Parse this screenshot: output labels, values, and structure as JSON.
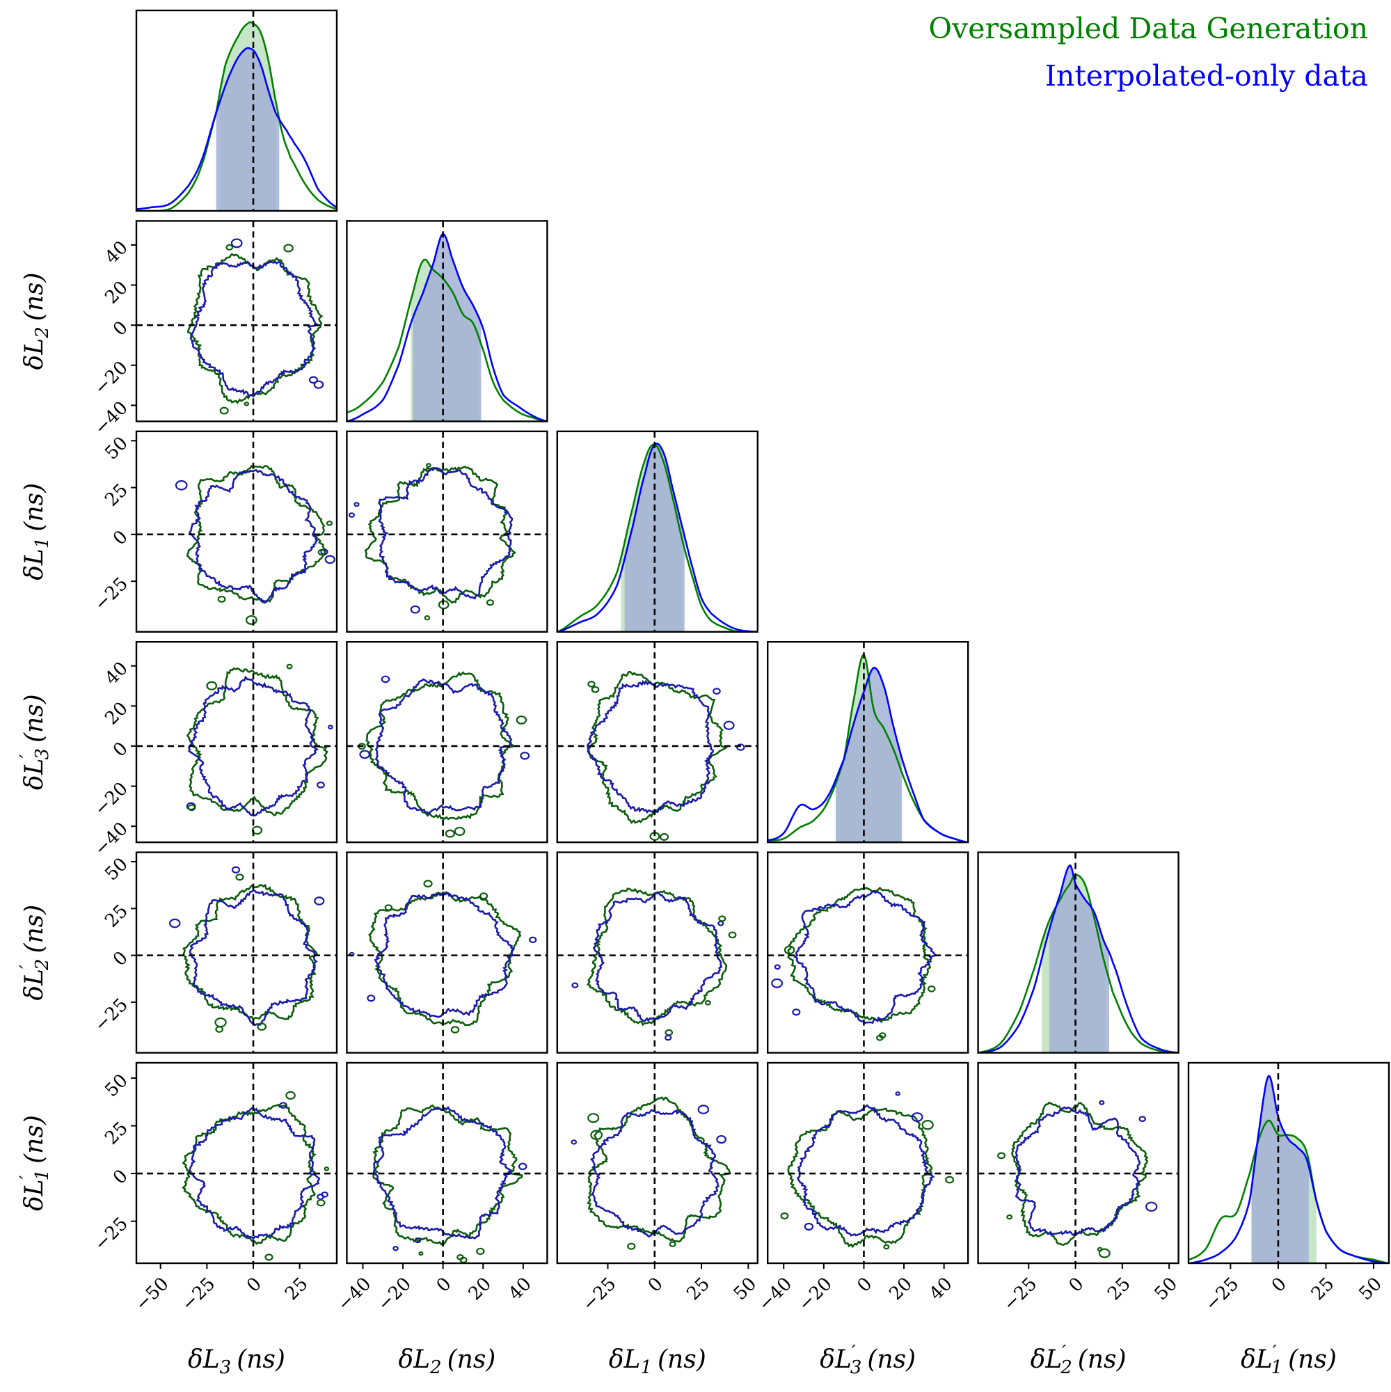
{
  "chart_data": {
    "type": "corner",
    "description_style": "triangular pair plot of 1D marginal densities and 2D contours",
    "legend": {
      "placement": "top-right",
      "entries": [
        {
          "label": "Oversampled Data Generation",
          "color": "#008000"
        },
        {
          "label": "Interpolated-only data",
          "color": "#0000ff"
        }
      ]
    },
    "colors": {
      "green_line": "#008000",
      "green_contour": "#0b5c0b",
      "blue_line": "#0000ff",
      "blue_contour": "#1a1aa8",
      "green_fill": "#b4dcb4",
      "blue_fill": "#a3b2d6"
    },
    "truth_lines": "dashed black at 0 on every panel",
    "parameters": [
      {
        "key": "L3",
        "base": "δL",
        "sub": "3",
        "prime": false,
        "unit": "(ns)",
        "range": [
          -63,
          45
        ],
        "ticks": [
          -50,
          -25,
          0,
          25
        ],
        "tick_labels": [
          "−50",
          "−25",
          "0",
          "25"
        ]
      },
      {
        "key": "L2",
        "base": "δL",
        "sub": "2",
        "prime": false,
        "unit": "(ns)",
        "range": [
          -48,
          52
        ],
        "ticks": [
          -40,
          -20,
          0,
          20,
          40
        ],
        "tick_labels": [
          "−40",
          "−20",
          "0",
          "20",
          "40"
        ]
      },
      {
        "key": "L1",
        "base": "δL",
        "sub": "1",
        "prime": false,
        "unit": "(ns)",
        "range": [
          -52,
          55
        ],
        "ticks": [
          -25,
          0,
          25,
          50
        ],
        "tick_labels": [
          "−25",
          "0",
          "25",
          "50"
        ]
      },
      {
        "key": "L3p",
        "base": "δL",
        "sub": "3",
        "prime": true,
        "unit": "(ns)",
        "range": [
          -48,
          52
        ],
        "ticks": [
          -40,
          -20,
          0,
          20,
          40
        ],
        "tick_labels": [
          "−40",
          "−20",
          "0",
          "20",
          "40"
        ]
      },
      {
        "key": "L2p",
        "base": "δL",
        "sub": "2",
        "prime": true,
        "unit": "(ns)",
        "range": [
          -52,
          55
        ],
        "ticks": [
          -25,
          0,
          25,
          50
        ],
        "tick_labels": [
          "−25",
          "0",
          "25",
          "50"
        ]
      },
      {
        "key": "L1p",
        "base": "δL",
        "sub": "1",
        "prime": true,
        "unit": "(ns)",
        "range": [
          -47,
          58
        ],
        "ticks": [
          -25,
          0,
          25,
          50
        ],
        "tick_labels": [
          "−25",
          "0",
          "25",
          "50"
        ]
      }
    ],
    "marginals": [
      {
        "param": "L3",
        "green": {
          "x": [
            -63,
            -45,
            -35,
            -28,
            -20,
            -15,
            -8,
            -3,
            0,
            4,
            8,
            12,
            16,
            20,
            28,
            35,
            45
          ],
          "y": [
            0,
            0.01,
            0.1,
            0.25,
            0.55,
            0.82,
            0.98,
            1.05,
            1.05,
            1.0,
            0.85,
            0.62,
            0.42,
            0.3,
            0.15,
            0.06,
            0.01
          ]
        },
        "blue": {
          "x": [
            -63,
            -55,
            -45,
            -35,
            -28,
            -20,
            -12,
            -5,
            0,
            4,
            8,
            12,
            18,
            22,
            28,
            35,
            45
          ],
          "y": [
            0.01,
            0.02,
            0.04,
            0.14,
            0.28,
            0.55,
            0.78,
            0.9,
            0.9,
            0.82,
            0.68,
            0.55,
            0.45,
            0.38,
            0.28,
            0.12,
            0.02
          ]
        },
        "green_interval": [
          -18,
          12
        ],
        "blue_interval": [
          -20,
          14
        ]
      },
      {
        "param": "L2",
        "green": {
          "x": [
            -48,
            -40,
            -30,
            -22,
            -16,
            -10,
            -5,
            0,
            5,
            10,
            15,
            20,
            25,
            30,
            38,
            45,
            52
          ],
          "y": [
            0.05,
            0.1,
            0.22,
            0.42,
            0.68,
            0.9,
            0.85,
            0.8,
            0.72,
            0.6,
            0.55,
            0.4,
            0.22,
            0.12,
            0.05,
            0.02,
            0.0
          ]
        },
        "blue": {
          "x": [
            -48,
            -40,
            -30,
            -22,
            -16,
            -10,
            -5,
            0,
            5,
            10,
            15,
            20,
            25,
            30,
            38,
            45,
            52
          ],
          "y": [
            0.0,
            0.04,
            0.12,
            0.32,
            0.55,
            0.72,
            0.88,
            1.05,
            0.9,
            0.75,
            0.65,
            0.52,
            0.3,
            0.15,
            0.08,
            0.03,
            0.0
          ]
        },
        "green_interval": [
          -16,
          18
        ],
        "blue_interval": [
          -15,
          19
        ]
      },
      {
        "param": "L1",
        "green": {
          "x": [
            -52,
            -40,
            -30,
            -20,
            -12,
            -5,
            0,
            5,
            10,
            15,
            20,
            25,
            30,
            38,
            45,
            55
          ],
          "y": [
            0.0,
            0.08,
            0.15,
            0.32,
            0.65,
            0.92,
            1.0,
            0.9,
            0.7,
            0.48,
            0.3,
            0.14,
            0.06,
            0.02,
            0.0,
            0.0
          ]
        },
        "blue": {
          "x": [
            -52,
            -40,
            -30,
            -20,
            -12,
            -5,
            0,
            5,
            10,
            15,
            20,
            25,
            30,
            38,
            45,
            55
          ],
          "y": [
            0.0,
            0.05,
            0.1,
            0.25,
            0.55,
            0.85,
            1.0,
            0.95,
            0.75,
            0.55,
            0.35,
            0.18,
            0.1,
            0.04,
            0.01,
            0.0
          ]
        },
        "green_interval": [
          -18,
          15
        ],
        "blue_interval": [
          -16,
          16
        ]
      },
      {
        "param": "L3p",
        "green": {
          "x": [
            -48,
            -40,
            -32,
            -25,
            -18,
            -10,
            -5,
            0,
            5,
            10,
            15,
            20,
            25,
            30,
            38,
            45,
            52
          ],
          "y": [
            0.01,
            0.02,
            0.08,
            0.12,
            0.22,
            0.45,
            0.78,
            1.02,
            0.72,
            0.62,
            0.5,
            0.35,
            0.22,
            0.12,
            0.05,
            0.02,
            0.0
          ]
        },
        "blue": {
          "x": [
            -48,
            -40,
            -32,
            -25,
            -18,
            -10,
            -5,
            0,
            5,
            10,
            15,
            20,
            25,
            30,
            38,
            45,
            52
          ],
          "y": [
            0.01,
            0.05,
            0.2,
            0.18,
            0.25,
            0.45,
            0.65,
            0.82,
            0.95,
            0.85,
            0.62,
            0.42,
            0.26,
            0.12,
            0.05,
            0.02,
            0.0
          ]
        },
        "green_interval": [
          -14,
          18
        ],
        "blue_interval": [
          -14,
          19
        ]
      },
      {
        "param": "L2p",
        "green": {
          "x": [
            -52,
            -40,
            -30,
            -22,
            -15,
            -8,
            -3,
            0,
            5,
            10,
            15,
            20,
            28,
            35,
            45,
            55
          ],
          "y": [
            0.0,
            0.05,
            0.22,
            0.45,
            0.68,
            0.82,
            0.9,
            0.95,
            0.9,
            0.72,
            0.5,
            0.32,
            0.14,
            0.05,
            0.01,
            0.0
          ]
        },
        "blue": {
          "x": [
            -52,
            -40,
            -30,
            -22,
            -15,
            -8,
            -3,
            0,
            5,
            10,
            15,
            20,
            28,
            35,
            45,
            55
          ],
          "y": [
            0.0,
            0.03,
            0.15,
            0.35,
            0.62,
            0.85,
            1.0,
            0.9,
            0.82,
            0.75,
            0.6,
            0.48,
            0.24,
            0.08,
            0.02,
            0.0
          ]
        },
        "green_interval": [
          -18,
          16
        ],
        "blue_interval": [
          -14,
          18
        ]
      },
      {
        "param": "L1p",
        "green": {
          "x": [
            -47,
            -38,
            -30,
            -22,
            -15,
            -10,
            -5,
            0,
            5,
            10,
            15,
            20,
            25,
            32,
            40,
            50,
            58
          ],
          "y": [
            0.02,
            0.08,
            0.25,
            0.28,
            0.5,
            0.7,
            0.8,
            0.72,
            0.72,
            0.7,
            0.62,
            0.35,
            0.18,
            0.08,
            0.04,
            0.02,
            0.0
          ]
        },
        "blue": {
          "x": [
            -47,
            -38,
            -30,
            -22,
            -15,
            -10,
            -5,
            0,
            5,
            10,
            15,
            20,
            25,
            32,
            40,
            50,
            58
          ],
          "y": [
            0.0,
            0.02,
            0.06,
            0.15,
            0.35,
            0.75,
            1.05,
            0.82,
            0.7,
            0.65,
            0.58,
            0.35,
            0.18,
            0.08,
            0.04,
            0.01,
            0.0
          ]
        },
        "green_interval": [
          -14,
          20
        ],
        "blue_interval": [
          -14,
          16
        ]
      }
    ],
    "contours": {
      "note": "each 2D panel shows one approximately circular credible-region contour per dataset, centered near (0,0)",
      "typical_radius": 33
    }
  }
}
